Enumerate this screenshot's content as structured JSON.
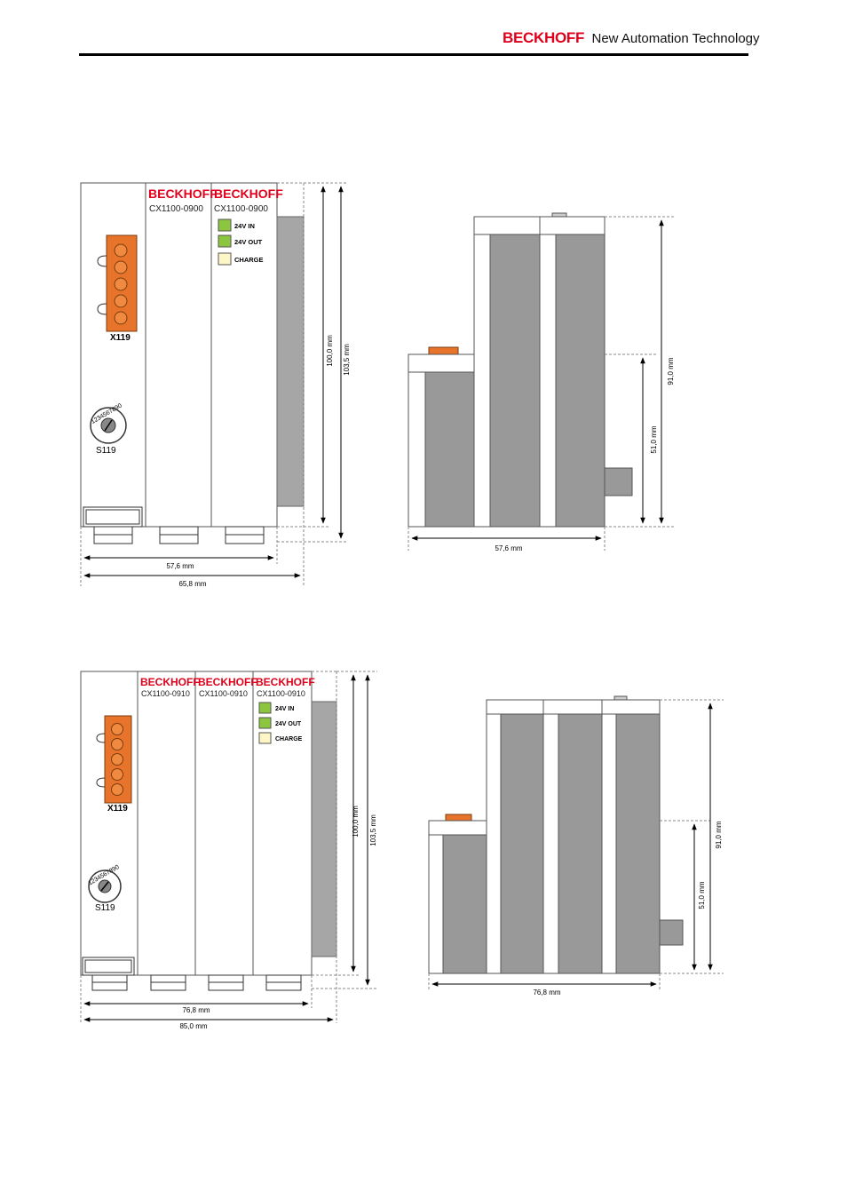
{
  "header": {
    "brand": "BECKHOFF",
    "tagline": "New Automation Technology"
  },
  "figure1": {
    "brand1": "BECKHOFF",
    "brand2": "BECKHOFF",
    "model1": "CX1100-0900",
    "model2": "CX1100-0900",
    "led_24v_in": "24V IN",
    "led_24v_out": "24V OUT",
    "led_charge": "CHARGE",
    "connector_label": "X119",
    "switch_label": "S119",
    "dial_digits": "1234567890",
    "dim_height_1": "100,0 mm",
    "dim_height_2": "103,5 mm",
    "dim_width_1": "57,6 mm",
    "dim_width_2": "65,8 mm"
  },
  "figure2": {
    "dim_depth": "91,0 mm",
    "dim_depth_2": "51,0 mm",
    "dim_width": "57,6 mm"
  },
  "figure3": {
    "brand1": "BECKHOFF",
    "brand2": "BECKHOFF",
    "brand3": "BECKHOFF",
    "model1": "CX1100-0910",
    "model2": "CX1100-0910",
    "model3": "CX1100-0910",
    "led_24v_in": "24V IN",
    "led_24v_out": "24V OUT",
    "led_charge": "CHARGE",
    "connector_label": "X119",
    "switch_label": "S119",
    "dial_digits": "1234567890",
    "dim_height_1": "100,0 mm",
    "dim_height_2": "103,5 mm",
    "dim_width_1": "76,8 mm",
    "dim_width_2": "85,0 mm"
  },
  "figure4": {
    "dim_depth": "91,0 mm",
    "dim_depth_2": "51,0 mm",
    "dim_width": "76,8 mm"
  },
  "colors": {
    "brand_red": "#e0001b",
    "terminal_orange": "#e8732a",
    "module_gray": "#999999",
    "led_green": "#8cc63f",
    "led_cream": "#fff6c8"
  }
}
